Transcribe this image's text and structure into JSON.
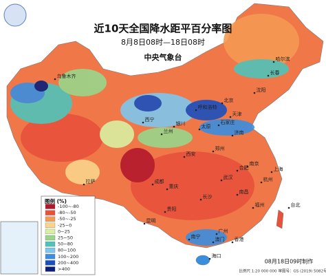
{
  "header": {
    "title": "近10天全国降水距平百分率图",
    "subtitle": "8月8日08时—18日08时",
    "agency": "中央气象台"
  },
  "legend": {
    "title": "图例 (%)",
    "items": [
      {
        "label": "-100~-80",
        "color": "#b2182b"
      },
      {
        "label": "-80~-50",
        "color": "#e8523b"
      },
      {
        "label": "-50~-25",
        "color": "#f59a52"
      },
      {
        "label": "-25~0",
        "color": "#fbd38a"
      },
      {
        "label": "0~25",
        "color": "#d9efa2"
      },
      {
        "label": "25~50",
        "color": "#98d68b"
      },
      {
        "label": "50~80",
        "color": "#4fc3b8"
      },
      {
        "label": "80~100",
        "color": "#7fc6ee"
      },
      {
        "label": "100~200",
        "color": "#3b8ede"
      },
      {
        "label": "200~400",
        "color": "#1a4fbf"
      },
      {
        "label": ">400",
        "color": "#0a1f7a"
      }
    ]
  },
  "cities": [
    "乌鲁木齐",
    "拉萨",
    "西宁",
    "兰州",
    "银川",
    "呼和浩特",
    "北京",
    "天津",
    "石家庄",
    "太原",
    "济南",
    "郑州",
    "西安",
    "成都",
    "重庆",
    "贵阳",
    "昆明",
    "南宁",
    "广州",
    "香港",
    "澳门",
    "海口",
    "长沙",
    "武汉",
    "合肥",
    "南京",
    "上海",
    "杭州",
    "南昌",
    "福州",
    "台北",
    "沈阳",
    "长春",
    "哈尔滨"
  ],
  "footer": {
    "made": "08月18日09时制作",
    "scale": "比例尺 1:20 000 000",
    "approval": "审图号：GS (2019) 5082号"
  }
}
